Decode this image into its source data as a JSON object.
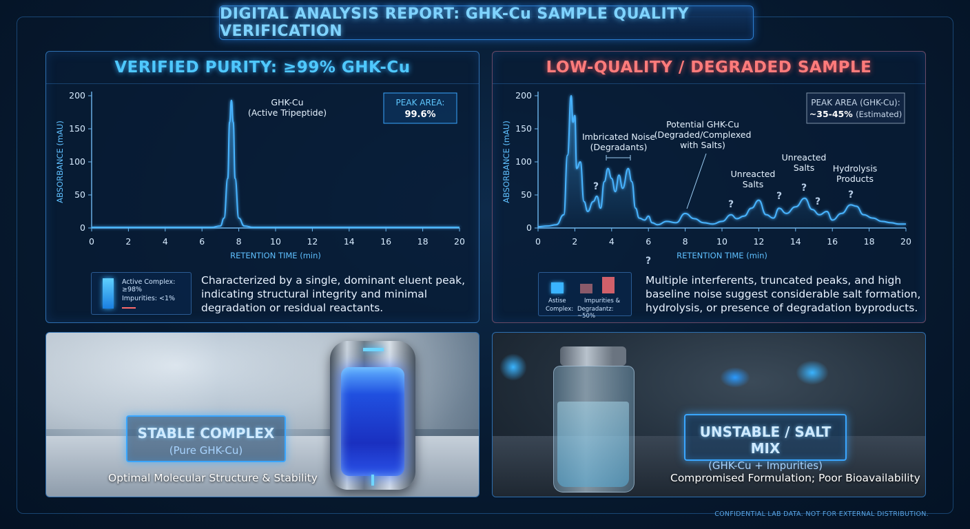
{
  "header": {
    "title": "DIGITAL ANALYSIS REPORT: GHK-Cu SAMPLE QUALITY VERIFICATION"
  },
  "colors": {
    "good": "#39b8ff",
    "bad": "#ff6b6b",
    "trace": "#48b4ff"
  },
  "chart_data": [
    {
      "type": "line",
      "title": "VERIFIED PURITY: ≥99% GHK-Cu",
      "xlabel": "RETENTION TIME (min)",
      "ylabel": "ABSORBANCE (mAU)",
      "xlim": [
        0,
        20
      ],
      "ylim": [
        0,
        200
      ],
      "x_ticks": [
        0,
        2,
        4,
        6,
        8,
        10,
        12,
        14,
        16,
        18,
        20
      ],
      "y_ticks": [
        0,
        50,
        100,
        150,
        200
      ],
      "series": [
        {
          "x": [
            0,
            6.5,
            7.0,
            7.2,
            7.4,
            7.5,
            7.6,
            7.7,
            7.8,
            8.0,
            8.3,
            8.8,
            20
          ],
          "y": [
            1,
            1,
            3,
            15,
            75,
            160,
            193,
            160,
            75,
            15,
            3,
            1,
            1
          ]
        }
      ],
      "annotations": [
        {
          "text": "GHK-Cu",
          "text2": "(Active Tripeptide)",
          "x": 7.6,
          "y": 193
        }
      ],
      "peak_box": {
        "label": "PEAK AREA:",
        "value": "99.6%"
      },
      "legend": {
        "active": "Active Complex: ≥98%",
        "impurities": "Impurities: <1%"
      },
      "description": "Characterized by a single, dominant eluent peak, indicating structural integrity and minimal degradation or residual reactants."
    },
    {
      "type": "line",
      "title": "LOW-QUALITY / DEGRADED SAMPLE",
      "xlabel": "RETENTION TIME (min)",
      "ylabel": "ABSORBANCE (mAU)",
      "xlim": [
        0,
        20
      ],
      "ylim": [
        0,
        200
      ],
      "x_ticks": [
        0,
        2,
        4,
        6,
        8,
        10,
        12,
        14,
        16,
        18,
        20
      ],
      "y_ticks": [
        0,
        50,
        100,
        150,
        200
      ],
      "series": [
        {
          "x": [
            0,
            0.5,
            1.0,
            1.4,
            1.6,
            1.8,
            1.9,
            2.0,
            2.1,
            2.3,
            2.5,
            2.7,
            3.0,
            3.2,
            3.4,
            3.6,
            3.8,
            4.0,
            4.2,
            4.4,
            4.6,
            4.9,
            5.1,
            5.3,
            5.5,
            5.8,
            6.0,
            6.2,
            6.5,
            7.0,
            7.5,
            8.0,
            8.5,
            9.0,
            9.5,
            10.0,
            10.5,
            10.8,
            11.2,
            11.6,
            12.0,
            12.4,
            12.8,
            13.1,
            13.5,
            14.0,
            14.5,
            14.9,
            15.3,
            15.7,
            16.0,
            16.5,
            17.0,
            17.3,
            17.7,
            18.2,
            18.7,
            19.2,
            19.6,
            20
          ],
          "y": [
            2,
            3,
            5,
            20,
            110,
            200,
            160,
            170,
            90,
            100,
            40,
            25,
            40,
            48,
            30,
            70,
            90,
            75,
            55,
            80,
            60,
            90,
            70,
            30,
            15,
            12,
            18,
            8,
            5,
            10,
            8,
            22,
            14,
            8,
            6,
            10,
            20,
            14,
            18,
            30,
            42,
            20,
            15,
            30,
            22,
            32,
            45,
            28,
            20,
            25,
            12,
            22,
            35,
            33,
            20,
            15,
            10,
            8,
            6,
            6
          ]
        }
      ],
      "annotations": [
        {
          "text": "Imbricated Noise",
          "text2": "(Degradants)"
        },
        {
          "text": "Potential GHK-Cu",
          "text2": "(Degraded/Complexed",
          "text3": "with Salts)"
        },
        {
          "text": "Unreacted",
          "text2": "Salts"
        },
        {
          "text": "Unreacted",
          "text2": "Salts"
        },
        {
          "text": "Hydrolysis",
          "text2": "Products"
        }
      ],
      "question_marks": [
        "?",
        "?",
        "?",
        "?",
        "?",
        "?",
        "?",
        "?"
      ],
      "peak_box": {
        "label": "PEAK AREA (GHK-Cu):",
        "value": "~35-45%",
        "value_note": "(Estimated)"
      },
      "legend": {
        "active_line1": "Astise",
        "active_line2": "Complex:",
        "impurities_line1": "Impurities &",
        "impurities_line2": "Degradantz: ~50%"
      },
      "description": "Multiple interferents, truncated peaks, and high baseline noise suggest considerable salt formation, hydrolysis, or presence of degradation byproducts."
    }
  ],
  "photos": {
    "left": {
      "title": "STABLE COMPLEX",
      "subtitle": "(Pure GHK-Cu)",
      "caption": "Optimal Molecular Structure & Stability"
    },
    "right": {
      "title": "UNSTABLE / SALT MIX",
      "subtitle": "(GHK-Cu + Impurities)",
      "caption": "Compromised Formulation; Poor Bioavailability"
    }
  },
  "footer": {
    "note": "CONFIDENTIAL LAB DATA. NOT FOR EXTERNAL DISTRIBUTION."
  }
}
